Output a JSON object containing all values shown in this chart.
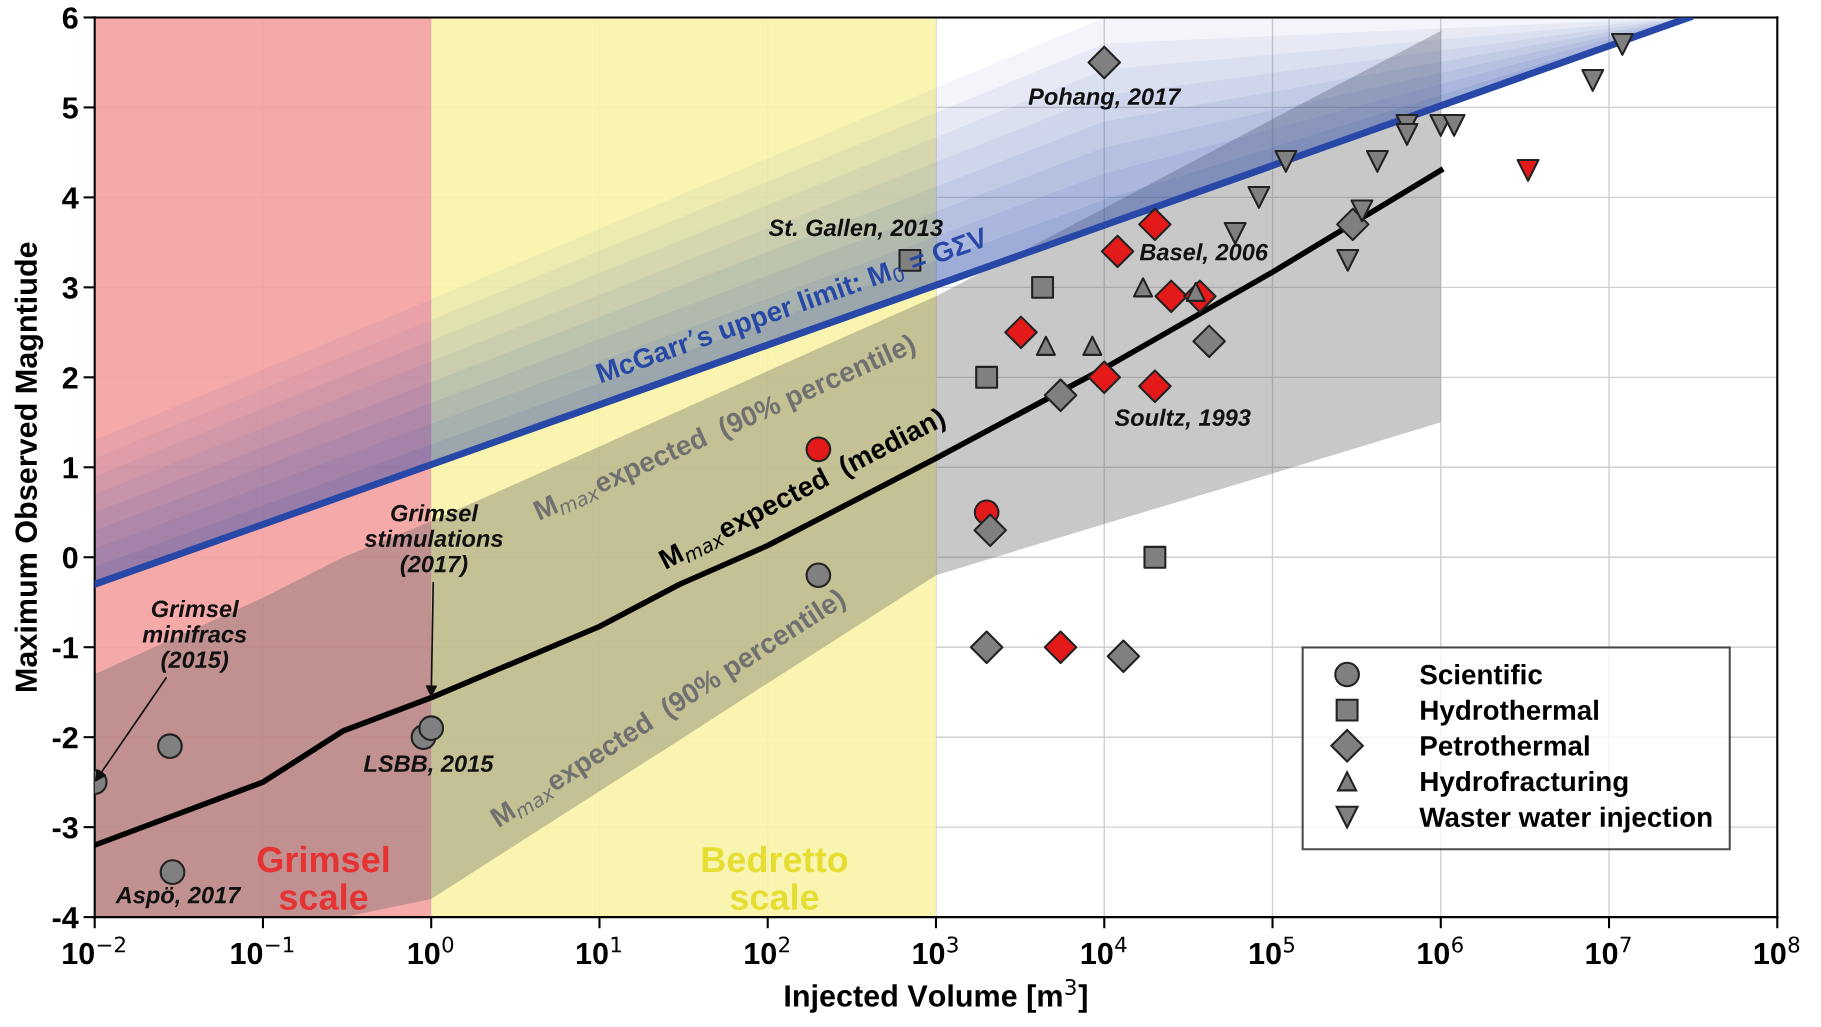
{
  "chart_data": {
    "type": "scatter",
    "xlabel": "Injected Volume [m$^{3}$]",
    "ylabel": "Maximum Observed Magntiude",
    "log": "x",
    "grid": true,
    "legend": "bottom right",
    "xlim": [
      0.01,
      100000000
    ],
    "ylim": [
      -4,
      6
    ],
    "xticks": [
      {
        "value": 0.01,
        "label": "10$^{−2}$"
      },
      {
        "value": 0.1,
        "label": "10$^{−1}$"
      },
      {
        "value": 1,
        "label": "10$^{0}$"
      },
      {
        "value": 10,
        "label": "10$^{1}$"
      },
      {
        "value": 100,
        "label": "10$^{2}$"
      },
      {
        "value": 1000,
        "label": "10$^{3}$"
      },
      {
        "value": 10000,
        "label": "10$^{4}$"
      },
      {
        "value": 100000,
        "label": "10$^{5}$"
      },
      {
        "value": 1000000,
        "label": "10$^{6}$"
      },
      {
        "value": 10000000,
        "label": "10$^{7}$"
      },
      {
        "value": 100000000,
        "label": "10$^{8}$"
      }
    ],
    "yticks": [
      -4,
      -3,
      -2,
      -1,
      0,
      1,
      2,
      3,
      4,
      5,
      6
    ],
    "bands": [
      {
        "axis": "x",
        "from": 0.01,
        "to": 1,
        "label": "Grimsel\nscale",
        "color": "#f4a0a0"
      },
      {
        "axis": "x",
        "from": 1,
        "to": 1000,
        "label": "Bedretto\nscale",
        "color": "#f8f4a8"
      }
    ],
    "series": [
      {
        "type": "line",
        "name": "McGarr’s upper limit: M$_{0}$ = GΣV",
        "color": "#2848a8",
        "x": [
          0.01,
          10000,
          30000000
        ],
        "values": [
          -0.3,
          3.69,
          6.0
        ],
        "lower": [
          -0.3,
          3.69,
          6.0
        ],
        "upper": [
          1.3,
          6.0,
          6.0
        ]
      },
      {
        "type": "line",
        "name": "M$_{max}$expected  (median)",
        "color": "#000000",
        "x": [
          0.01,
          0.1,
          0.3,
          1,
          10,
          30,
          100,
          1000,
          10000,
          100000,
          1000000
        ],
        "values": [
          -3.2,
          -2.5,
          -1.93,
          -1.56,
          -0.77,
          -0.3,
          0.13,
          1.1,
          2.1,
          3.17,
          4.3
        ],
        "lower": [
          -4,
          -4,
          -4,
          -3.8,
          -2.6,
          -2.03,
          -1.4,
          -0.2,
          0.37,
          0.93,
          1.5
        ],
        "upper": [
          -1.3,
          -0.45,
          0.0,
          0.4,
          1.23,
          1.63,
          2.07,
          2.9,
          3.88,
          4.87,
          5.85
        ]
      },
      {
        "name": "Scientific",
        "marker": "circle",
        "color": "#808080",
        "x": [
          0.01,
          0.028,
          0.029,
          0.9,
          1.0,
          200,
          200,
          2000
        ],
        "values": [
          -2.5,
          -2.1,
          -3.5,
          -2.0,
          -1.9,
          -0.2,
          1.2,
          0.5
        ],
        "colors": [
          "#808080",
          "#808080",
          "#808080",
          "#808080",
          "#808080",
          "#808080",
          "#e41a1a",
          "#e41a1a"
        ]
      },
      {
        "name": "Hydrothermal",
        "marker": "square",
        "color": "#808080",
        "x": [
          700,
          4300,
          2000,
          20000
        ],
        "values": [
          3.3,
          3.0,
          2.0,
          0.0
        ]
      },
      {
        "name": "Petrothermal",
        "marker": "diamond",
        "color": "#808080",
        "x": [
          10000,
          20000,
          12000,
          3200,
          25000,
          37000,
          42000,
          5500,
          10000,
          20000,
          2100,
          2000,
          5500,
          13000,
          300000
        ],
        "values": [
          5.5,
          3.7,
          3.4,
          2.5,
          2.9,
          2.9,
          2.4,
          1.8,
          2.0,
          1.9,
          0.3,
          -1.0,
          -1.0,
          -1.1,
          3.7
        ],
        "colors": [
          "#808080",
          "#e41a1a",
          "#e41a1a",
          "#e41a1a",
          "#e41a1a",
          "#e41a1a",
          "#808080",
          "#808080",
          "#e41a1a",
          "#e41a1a",
          "#808080",
          "#808080",
          "#e41a1a",
          "#808080",
          "#808080"
        ]
      },
      {
        "name": "Hydrofracturing",
        "marker": "triangle",
        "color": "#808080",
        "x": [
          17000,
          4500,
          8500,
          35000
        ],
        "values": [
          3.0,
          2.35,
          2.35,
          2.95
        ]
      },
      {
        "name": "Waster water injection",
        "marker": "triangle_down",
        "color": "#808080",
        "x": [
          12000000,
          8000000,
          630000,
          630000,
          1000000,
          1200000,
          120000,
          420000,
          83000,
          60000,
          340000,
          280000,
          3300000
        ],
        "values": [
          5.7,
          5.3,
          4.8,
          4.7,
          4.8,
          4.8,
          4.4,
          4.4,
          4.0,
          3.6,
          3.85,
          3.3,
          4.3
        ],
        "colors": [
          "#808080",
          "#808080",
          "#808080",
          "#808080",
          "#808080",
          "#808080",
          "#808080",
          "#808080",
          "#808080",
          "#808080",
          "#808080",
          "#808080",
          "#e41a1a"
        ]
      }
    ],
    "annotations": [
      {
        "text": "St. Gallen, 2013",
        "x": 700,
        "y": 3.3
      },
      {
        "text": "Pohang, 2017",
        "x": 10000,
        "y": 5.5
      },
      {
        "text": "Basel, 2006",
        "x": 12000,
        "y": 3.4
      },
      {
        "text": "Soultz, 1993",
        "x": 20000,
        "y": 1.9
      },
      {
        "text": "LSBB, 2015",
        "x": 1.0,
        "y": -1.9
      },
      {
        "text": "Aspö, 2017",
        "x": 0.029,
        "y": -3.5
      },
      {
        "text": "Grimsel\nminifracs\n(2015)",
        "x": 0.01,
        "y": -2.5
      },
      {
        "text": "Grimsel\nstimulations\n(2017)",
        "x": 1,
        "y": -1.56
      },
      {
        "text": "M$_{max}$expected  (90% percentile)",
        "x": 46,
        "y": 1.78
      },
      {
        "text": "M$_{max}$expected  (90% percentile)",
        "x": 33,
        "y": -2.0
      }
    ]
  }
}
